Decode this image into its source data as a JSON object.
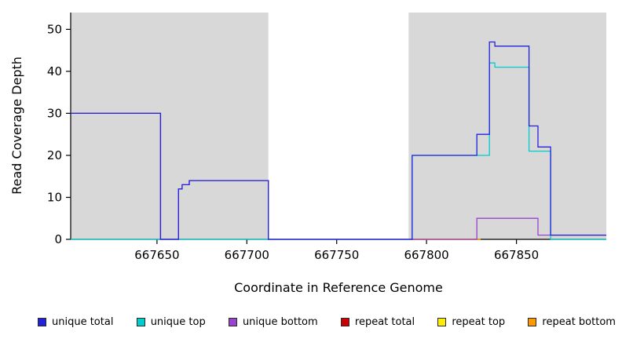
{
  "chart_data": {
    "type": "line",
    "style": "step",
    "title": "",
    "xlabel": "Coordinate in Reference Genome",
    "ylabel": "Read Coverage Depth",
    "x_range": [
      667602,
      667900
    ],
    "y_range": [
      0,
      54
    ],
    "x_ticks": [
      667650,
      667700,
      667750,
      667800,
      667850
    ],
    "y_ticks": [
      0,
      10,
      20,
      30,
      40,
      50
    ],
    "region_color": "#d8d8d8",
    "background_regions": [
      {
        "name": "coverage-block-left",
        "x_start": 667602,
        "x_end": 667712
      },
      {
        "name": "coverage-block-right",
        "x_start": 667790,
        "x_end": 667900
      }
    ],
    "series": [
      {
        "name": "repeat total",
        "color": "#cc0000",
        "points": [
          [
            667792,
            0
          ],
          [
            667830,
            0
          ]
        ]
      },
      {
        "name": "repeat top",
        "color": "#ffee00",
        "points": [
          [
            667792,
            0
          ],
          [
            667830,
            0
          ]
        ]
      },
      {
        "name": "repeat bottom",
        "color": "#ff9900",
        "points": [
          [
            667792,
            0
          ],
          [
            667830,
            0
          ]
        ]
      },
      {
        "name": "unique top",
        "color": "#00cdcd",
        "points": [
          [
            667602,
            0
          ],
          [
            667792,
            0
          ],
          [
            667792,
            20
          ],
          [
            667835,
            20
          ],
          [
            667835,
            42
          ],
          [
            667838,
            42
          ],
          [
            667838,
            41
          ],
          [
            667857,
            41
          ],
          [
            667857,
            21
          ],
          [
            667869,
            21
          ],
          [
            667869,
            0
          ],
          [
            667900,
            0
          ]
        ]
      },
      {
        "name": "unique bottom",
        "color": "#9944cc",
        "points": [
          [
            667602,
            30
          ],
          [
            667652,
            30
          ],
          [
            667652,
            0
          ],
          [
            667662,
            0
          ],
          [
            667662,
            12
          ],
          [
            667664,
            12
          ],
          [
            667664,
            13
          ],
          [
            667668,
            13
          ],
          [
            667668,
            14
          ],
          [
            667712,
            14
          ],
          [
            667712,
            0
          ],
          [
            667828,
            0
          ],
          [
            667828,
            5
          ],
          [
            667862,
            5
          ],
          [
            667862,
            1
          ],
          [
            667900,
            1
          ]
        ]
      },
      {
        "name": "unique total",
        "color": "#2222dd",
        "points": [
          [
            667602,
            30
          ],
          [
            667652,
            30
          ],
          [
            667652,
            0
          ],
          [
            667662,
            0
          ],
          [
            667662,
            12
          ],
          [
            667664,
            12
          ],
          [
            667664,
            13
          ],
          [
            667668,
            13
          ],
          [
            667668,
            14
          ],
          [
            667712,
            14
          ],
          [
            667712,
            0
          ],
          [
            667792,
            0
          ],
          [
            667792,
            20
          ],
          [
            667828,
            20
          ],
          [
            667828,
            25
          ],
          [
            667835,
            25
          ],
          [
            667835,
            47
          ],
          [
            667838,
            47
          ],
          [
            667838,
            46
          ],
          [
            667857,
            46
          ],
          [
            667857,
            27
          ],
          [
            667862,
            27
          ],
          [
            667862,
            22
          ],
          [
            667869,
            22
          ],
          [
            667869,
            1
          ],
          [
            667900,
            1
          ]
        ]
      }
    ],
    "legend": [
      {
        "label": "unique total",
        "color": "#2222dd"
      },
      {
        "label": "unique top",
        "color": "#00cdcd"
      },
      {
        "label": "unique bottom",
        "color": "#9944cc"
      },
      {
        "label": "repeat total",
        "color": "#cc0000"
      },
      {
        "label": "repeat top",
        "color": "#ffee00"
      },
      {
        "label": "repeat bottom",
        "color": "#ff9900"
      }
    ]
  }
}
